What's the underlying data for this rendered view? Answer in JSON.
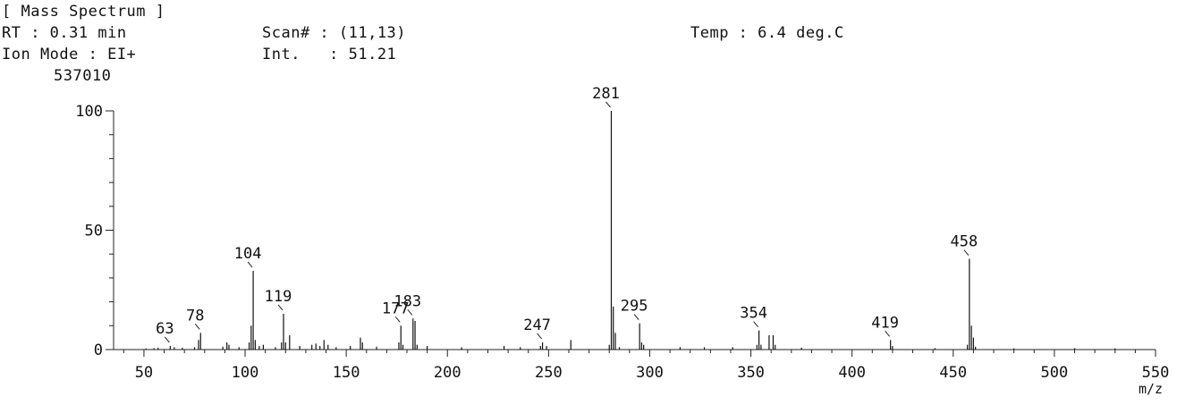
{
  "header": {
    "title": "[ Mass Spectrum ]",
    "rt": "RT : 0.31 min",
    "scan": "Scan# : (11,13)",
    "temp": "Temp : 6.4 deg.C",
    "ion_mode": "Ion Mode : EI+",
    "intensity": "Int.   : 51.21",
    "max_count": "537010"
  },
  "chart_data": {
    "type": "bar",
    "title": "[ Mass Spectrum ]",
    "xlabel": "m/z",
    "ylabel": "",
    "xlim": [
      35,
      550
    ],
    "ylim": [
      0,
      100
    ],
    "x_ticks": [
      50,
      100,
      150,
      200,
      250,
      300,
      350,
      400,
      450,
      500,
      550
    ],
    "x_tick_labels": [
      "50",
      "100",
      "150",
      "200",
      "250",
      "300",
      "350",
      "400",
      "450",
      "500",
      "550"
    ],
    "y_ticks": [
      0,
      50,
      100
    ],
    "y_tick_labels": [
      "0",
      "50",
      "100"
    ],
    "grid": false,
    "peaks": [
      {
        "x": 51,
        "y": 0.5
      },
      {
        "x": 55,
        "y": 0.6
      },
      {
        "x": 57,
        "y": 0.8
      },
      {
        "x": 63,
        "y": 1.5
      },
      {
        "x": 65,
        "y": 1
      },
      {
        "x": 69,
        "y": 0.8
      },
      {
        "x": 75,
        "y": 1
      },
      {
        "x": 77,
        "y": 4
      },
      {
        "x": 78,
        "y": 7
      },
      {
        "x": 89,
        "y": 1.2
      },
      {
        "x": 91,
        "y": 3
      },
      {
        "x": 92,
        "y": 2
      },
      {
        "x": 97,
        "y": 1
      },
      {
        "x": 102,
        "y": 3
      },
      {
        "x": 103,
        "y": 10
      },
      {
        "x": 104,
        "y": 33
      },
      {
        "x": 105,
        "y": 4
      },
      {
        "x": 107,
        "y": 1.5
      },
      {
        "x": 109,
        "y": 2
      },
      {
        "x": 115,
        "y": 1
      },
      {
        "x": 118,
        "y": 3
      },
      {
        "x": 119,
        "y": 15
      },
      {
        "x": 120,
        "y": 3
      },
      {
        "x": 122,
        "y": 6
      },
      {
        "x": 127,
        "y": 1.5
      },
      {
        "x": 133,
        "y": 2
      },
      {
        "x": 135,
        "y": 2.5
      },
      {
        "x": 137,
        "y": 1.5
      },
      {
        "x": 139,
        "y": 4
      },
      {
        "x": 141,
        "y": 2
      },
      {
        "x": 145,
        "y": 1
      },
      {
        "x": 152,
        "y": 1.5
      },
      {
        "x": 157,
        "y": 5
      },
      {
        "x": 158,
        "y": 3
      },
      {
        "x": 165,
        "y": 1.2
      },
      {
        "x": 176,
        "y": 3
      },
      {
        "x": 177,
        "y": 10
      },
      {
        "x": 178,
        "y": 2
      },
      {
        "x": 183,
        "y": 13
      },
      {
        "x": 184,
        "y": 12
      },
      {
        "x": 185,
        "y": 2
      },
      {
        "x": 190,
        "y": 1.5
      },
      {
        "x": 207,
        "y": 1
      },
      {
        "x": 228,
        "y": 1.5
      },
      {
        "x": 236,
        "y": 1
      },
      {
        "x": 246,
        "y": 1.5
      },
      {
        "x": 247,
        "y": 3
      },
      {
        "x": 249,
        "y": 1.5
      },
      {
        "x": 261,
        "y": 4
      },
      {
        "x": 280,
        "y": 2
      },
      {
        "x": 281,
        "y": 100
      },
      {
        "x": 282,
        "y": 18
      },
      {
        "x": 283,
        "y": 7
      },
      {
        "x": 285,
        "y": 1
      },
      {
        "x": 295,
        "y": 11
      },
      {
        "x": 296,
        "y": 3
      },
      {
        "x": 297,
        "y": 2
      },
      {
        "x": 315,
        "y": 1
      },
      {
        "x": 327,
        "y": 1
      },
      {
        "x": 341,
        "y": 1
      },
      {
        "x": 353,
        "y": 2
      },
      {
        "x": 354,
        "y": 8
      },
      {
        "x": 355,
        "y": 2
      },
      {
        "x": 359,
        "y": 6
      },
      {
        "x": 361,
        "y": 6
      },
      {
        "x": 362,
        "y": 2
      },
      {
        "x": 375,
        "y": 0.8
      },
      {
        "x": 419,
        "y": 4
      },
      {
        "x": 420,
        "y": 1.5
      },
      {
        "x": 441,
        "y": 0.6
      },
      {
        "x": 457,
        "y": 2
      },
      {
        "x": 458,
        "y": 38
      },
      {
        "x": 459,
        "y": 10
      },
      {
        "x": 460,
        "y": 5
      },
      {
        "x": 461,
        "y": 1.2
      },
      {
        "x": 480,
        "y": 0.5
      },
      {
        "x": 510,
        "y": 0.6
      },
      {
        "x": 530,
        "y": 0.5
      }
    ],
    "peak_labels": [
      {
        "text": "63",
        "x": 63
      },
      {
        "text": "78",
        "x": 78
      },
      {
        "text": "104",
        "x": 104
      },
      {
        "text": "119",
        "x": 119
      },
      {
        "text": "177",
        "x": 177
      },
      {
        "text": "183",
        "x": 183
      },
      {
        "text": "247",
        "x": 247
      },
      {
        "text": "281",
        "x": 281
      },
      {
        "text": "295",
        "x": 295
      },
      {
        "text": "354",
        "x": 354
      },
      {
        "text": "419",
        "x": 419
      },
      {
        "text": "458",
        "x": 458
      }
    ]
  }
}
